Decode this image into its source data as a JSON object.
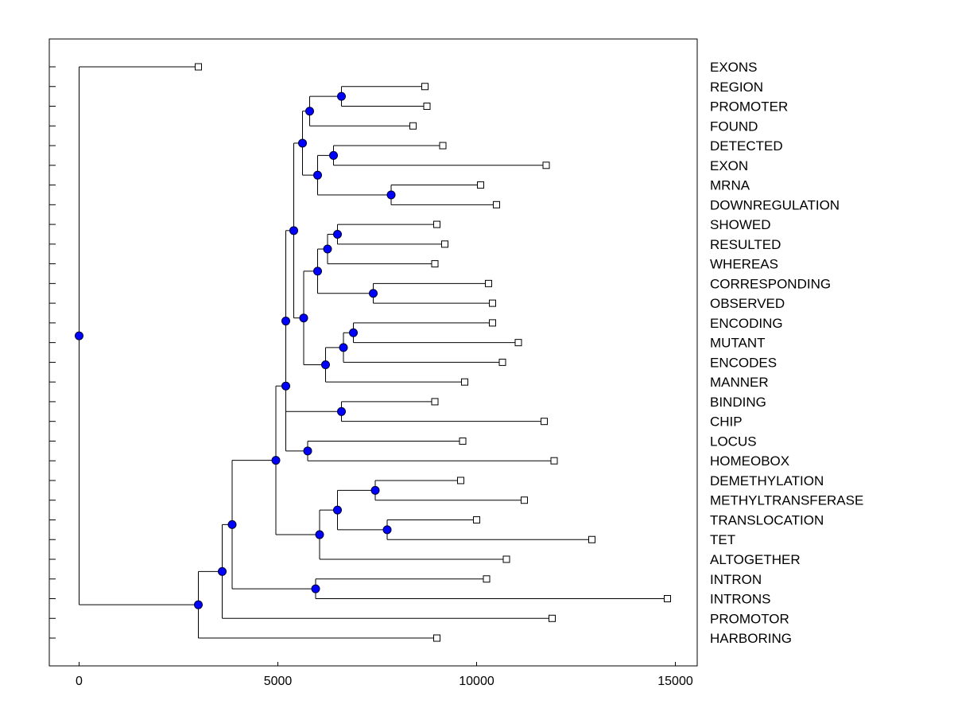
{
  "chart_data": {
    "type": "dendrogram",
    "title": "",
    "xlabel": "",
    "ylabel": "",
    "xlim": [
      -750,
      15550
    ],
    "x_ticks": [
      0,
      5000,
      10000,
      15000
    ],
    "x_tick_labels": [
      "0",
      "5000",
      "10000",
      "15000"
    ],
    "leaves": [
      {
        "label": "EXONS",
        "value": 3000
      },
      {
        "label": "REGION",
        "value": 8700
      },
      {
        "label": "PROMOTER",
        "value": 8750
      },
      {
        "label": "FOUND",
        "value": 8400
      },
      {
        "label": "DETECTED",
        "value": 9150
      },
      {
        "label": "EXON",
        "value": 11750
      },
      {
        "label": "MRNA",
        "value": 10100
      },
      {
        "label": "DOWNREGULATION",
        "value": 10500
      },
      {
        "label": "SHOWED",
        "value": 9000
      },
      {
        "label": "RESULTED",
        "value": 9200
      },
      {
        "label": "WHEREAS",
        "value": 8950
      },
      {
        "label": "CORRESPONDING",
        "value": 10300
      },
      {
        "label": "OBSERVED",
        "value": 10400
      },
      {
        "label": "ENCODING",
        "value": 10400
      },
      {
        "label": "MUTANT",
        "value": 11050
      },
      {
        "label": "ENCODES",
        "value": 10650
      },
      {
        "label": "MANNER",
        "value": 9700
      },
      {
        "label": "BINDING",
        "value": 8950
      },
      {
        "label": "CHIP",
        "value": 11700
      },
      {
        "label": "LOCUS",
        "value": 9650
      },
      {
        "label": "HOMEOBOX",
        "value": 11950
      },
      {
        "label": "DEMETHYLATION",
        "value": 9600
      },
      {
        "label": "METHYLTRANSFERASE",
        "value": 11200
      },
      {
        "label": "TRANSLOCATION",
        "value": 10000
      },
      {
        "label": "TET",
        "value": 12900
      },
      {
        "label": "ALTOGETHER",
        "value": 10750
      },
      {
        "label": "INTRON",
        "value": 10250
      },
      {
        "label": "INTRONS",
        "value": 14800
      },
      {
        "label": "PROMOTOR",
        "value": 11900
      },
      {
        "label": "HARBORING",
        "value": 9000
      }
    ],
    "nodes": [
      {
        "id": "N1",
        "value": 6600,
        "children": [
          "L1",
          "L2"
        ]
      },
      {
        "id": "N2",
        "value": 5800,
        "children": [
          "N1",
          "L3"
        ]
      },
      {
        "id": "N3",
        "value": 6400,
        "children": [
          "L4",
          "L5"
        ]
      },
      {
        "id": "N4",
        "value": 7850,
        "children": [
          "L6",
          "L7"
        ]
      },
      {
        "id": "N5",
        "value": 6000,
        "children": [
          "N3",
          "N4"
        ]
      },
      {
        "id": "N6",
        "value": 5620,
        "children": [
          "N2",
          "N5"
        ]
      },
      {
        "id": "N7",
        "value": 6500,
        "children": [
          "L8",
          "L9"
        ]
      },
      {
        "id": "N8",
        "value": 6250,
        "children": [
          "N7",
          "L10"
        ]
      },
      {
        "id": "N9",
        "value": 7400,
        "children": [
          "L11",
          "L12"
        ]
      },
      {
        "id": "N10",
        "value": 6000,
        "children": [
          "N8",
          "N9"
        ]
      },
      {
        "id": "N11",
        "value": 6900,
        "children": [
          "L13",
          "L14"
        ]
      },
      {
        "id": "N12",
        "value": 6650,
        "children": [
          "N11",
          "L15"
        ]
      },
      {
        "id": "N13",
        "value": 6200,
        "children": [
          "N12",
          "L16"
        ]
      },
      {
        "id": "N14",
        "value": 5650,
        "children": [
          "N10",
          "N13"
        ]
      },
      {
        "id": "N15",
        "value": 5400,
        "children": [
          "N6",
          "N14"
        ]
      },
      {
        "id": "N16",
        "value": 6600,
        "children": [
          "L17",
          "L18"
        ]
      },
      {
        "id": "N17",
        "value": 5200,
        "children": [
          "N15",
          "N16"
        ]
      },
      {
        "id": "N18",
        "value": 5750,
        "children": [
          "L19",
          "L20"
        ]
      },
      {
        "id": "N19",
        "value": 5200,
        "children": [
          "N17",
          "N18"
        ]
      },
      {
        "id": "N20",
        "value": 7450,
        "children": [
          "L21",
          "L22"
        ]
      },
      {
        "id": "N21",
        "value": 7750,
        "children": [
          "L23",
          "L24"
        ]
      },
      {
        "id": "N22",
        "value": 6500,
        "children": [
          "N20",
          "N21"
        ]
      },
      {
        "id": "N23",
        "value": 6050,
        "children": [
          "N22",
          "L25"
        ]
      },
      {
        "id": "N24",
        "value": 4950,
        "children": [
          "N19",
          "N23"
        ]
      },
      {
        "id": "N25",
        "value": 5950,
        "children": [
          "L26",
          "L27"
        ]
      },
      {
        "id": "N26",
        "value": 3850,
        "children": [
          "N24",
          "N25"
        ]
      },
      {
        "id": "N27",
        "value": 3600,
        "children": [
          "N26",
          "L28"
        ]
      },
      {
        "id": "N28",
        "value": 3000,
        "children": [
          "N27",
          "L29"
        ]
      },
      {
        "id": "N29",
        "value": 0,
        "children": [
          "L0",
          "N28"
        ]
      }
    ],
    "root": "N29"
  }
}
